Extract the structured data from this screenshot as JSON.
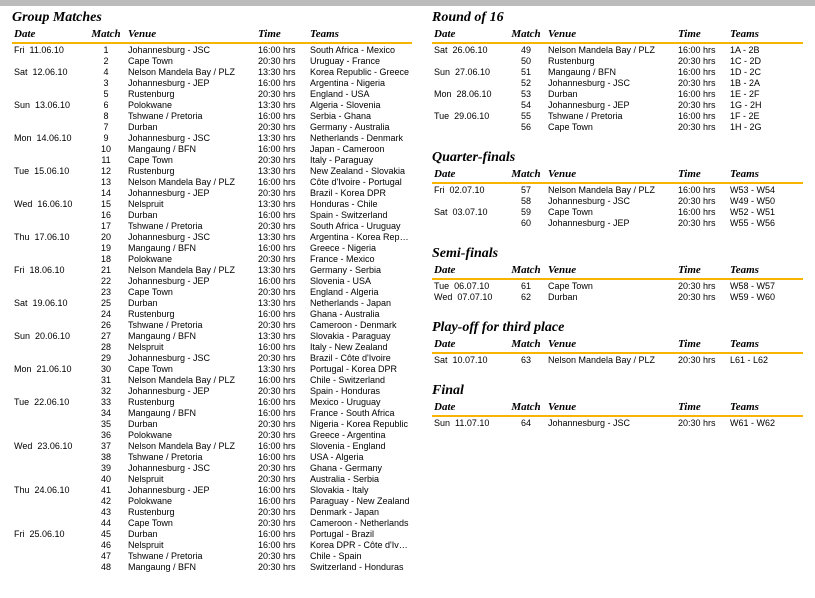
{
  "columns": {
    "date": "Date",
    "match": "Match",
    "venue": "Venue",
    "time": "Time",
    "teams": "Teams"
  },
  "sections": [
    {
      "key": "group",
      "title": "Group Matches",
      "col": "left",
      "rows": [
        {
          "d": "Fri",
          "dt": "11.06.10",
          "m": 1,
          "v": "Johannesburg - JSC",
          "t": "16:00 hrs",
          "tm": "South Africa - Mexico"
        },
        {
          "d": "",
          "dt": "",
          "m": 2,
          "v": "Cape Town",
          "t": "20:30 hrs",
          "tm": "Uruguay - France"
        },
        {
          "d": "Sat",
          "dt": "12.06.10",
          "m": 4,
          "v": "Nelson Mandela Bay / PLZ",
          "t": "13:30 hrs",
          "tm": "Korea Republic - Greece"
        },
        {
          "d": "",
          "dt": "",
          "m": 3,
          "v": "Johannesburg - JEP",
          "t": "16:00 hrs",
          "tm": "Argentina - Nigeria"
        },
        {
          "d": "",
          "dt": "",
          "m": 5,
          "v": "Rustenburg",
          "t": "20:30 hrs",
          "tm": "England - USA"
        },
        {
          "d": "Sun",
          "dt": "13.06.10",
          "m": 6,
          "v": "Polokwane",
          "t": "13:30 hrs",
          "tm": "Algeria - Slovenia"
        },
        {
          "d": "",
          "dt": "",
          "m": 8,
          "v": "Tshwane / Pretoria",
          "t": "16:00 hrs",
          "tm": "Serbia - Ghana"
        },
        {
          "d": "",
          "dt": "",
          "m": 7,
          "v": "Durban",
          "t": "20:30 hrs",
          "tm": "Germany - Australia"
        },
        {
          "d": "Mon",
          "dt": "14.06.10",
          "m": 9,
          "v": "Johannesburg - JSC",
          "t": "13:30 hrs",
          "tm": "Netherlands - Denmark"
        },
        {
          "d": "",
          "dt": "",
          "m": 10,
          "v": "Mangaung / BFN",
          "t": "16:00 hrs",
          "tm": "Japan - Cameroon"
        },
        {
          "d": "",
          "dt": "",
          "m": 11,
          "v": "Cape Town",
          "t": "20:30 hrs",
          "tm": "Italy - Paraguay"
        },
        {
          "d": "Tue",
          "dt": "15.06.10",
          "m": 12,
          "v": "Rustenburg",
          "t": "13:30 hrs",
          "tm": "New Zealand - Slovakia"
        },
        {
          "d": "",
          "dt": "",
          "m": 13,
          "v": "Nelson Mandela Bay / PLZ",
          "t": "16:00 hrs",
          "tm": "Côte d'Ivoire - Portugal"
        },
        {
          "d": "",
          "dt": "",
          "m": 14,
          "v": "Johannesburg - JEP",
          "t": "20:30 hrs",
          "tm": "Brazil - Korea DPR"
        },
        {
          "d": "Wed",
          "dt": "16.06.10",
          "m": 15,
          "v": "Nelspruit",
          "t": "13:30 hrs",
          "tm": "Honduras - Chile"
        },
        {
          "d": "",
          "dt": "",
          "m": 16,
          "v": "Durban",
          "t": "16:00 hrs",
          "tm": "Spain - Switzerland"
        },
        {
          "d": "",
          "dt": "",
          "m": 17,
          "v": "Tshwane / Pretoria",
          "t": "20:30 hrs",
          "tm": "South Africa - Uruguay"
        },
        {
          "d": "Thu",
          "dt": "17.06.10",
          "m": 20,
          "v": "Johannesburg - JSC",
          "t": "13:30 hrs",
          "tm": "Argentina - Korea Republic"
        },
        {
          "d": "",
          "dt": "",
          "m": 19,
          "v": "Mangaung / BFN",
          "t": "16:00 hrs",
          "tm": "Greece - Nigeria"
        },
        {
          "d": "",
          "dt": "",
          "m": 18,
          "v": "Polokwane",
          "t": "20:30 hrs",
          "tm": "France - Mexico"
        },
        {
          "d": "Fri",
          "dt": "18.06.10",
          "m": 21,
          "v": "Nelson Mandela Bay / PLZ",
          "t": "13:30 hrs",
          "tm": "Germany - Serbia"
        },
        {
          "d": "",
          "dt": "",
          "m": 22,
          "v": "Johannesburg - JEP",
          "t": "16:00 hrs",
          "tm": "Slovenia - USA"
        },
        {
          "d": "",
          "dt": "",
          "m": 23,
          "v": "Cape Town",
          "t": "20:30 hrs",
          "tm": "England - Algeria"
        },
        {
          "d": "Sat",
          "dt": "19.06.10",
          "m": 25,
          "v": "Durban",
          "t": "13:30 hrs",
          "tm": "Netherlands - Japan"
        },
        {
          "d": "",
          "dt": "",
          "m": 24,
          "v": "Rustenburg",
          "t": "16:00 hrs",
          "tm": "Ghana - Australia"
        },
        {
          "d": "",
          "dt": "",
          "m": 26,
          "v": "Tshwane / Pretoria",
          "t": "20:30 hrs",
          "tm": "Cameroon - Denmark"
        },
        {
          "d": "Sun",
          "dt": "20.06.10",
          "m": 27,
          "v": "Mangaung / BFN",
          "t": "13:30 hrs",
          "tm": "Slovakia - Paraguay"
        },
        {
          "d": "",
          "dt": "",
          "m": 28,
          "v": "Nelspruit",
          "t": "16:00 hrs",
          "tm": "Italy - New Zealand"
        },
        {
          "d": "",
          "dt": "",
          "m": 29,
          "v": "Johannesburg - JSC",
          "t": "20:30 hrs",
          "tm": "Brazil - Côte d'Ivoire"
        },
        {
          "d": "Mon",
          "dt": "21.06.10",
          "m": 30,
          "v": "Cape Town",
          "t": "13:30 hrs",
          "tm": "Portugal - Korea DPR"
        },
        {
          "d": "",
          "dt": "",
          "m": 31,
          "v": "Nelson Mandela Bay / PLZ",
          "t": "16:00 hrs",
          "tm": "Chile - Switzerland"
        },
        {
          "d": "",
          "dt": "",
          "m": 32,
          "v": "Johannesburg - JEP",
          "t": "20:30 hrs",
          "tm": "Spain - Honduras"
        },
        {
          "d": "Tue",
          "dt": "22.06.10",
          "m": 33,
          "v": "Rustenburg",
          "t": "16:00 hrs",
          "tm": "Mexico - Uruguay"
        },
        {
          "d": "",
          "dt": "",
          "m": 34,
          "v": "Mangaung / BFN",
          "t": "16:00 hrs",
          "tm": "France - South Africa"
        },
        {
          "d": "",
          "dt": "",
          "m": 35,
          "v": "Durban",
          "t": "20:30 hrs",
          "tm": "Nigeria - Korea Republic"
        },
        {
          "d": "",
          "dt": "",
          "m": 36,
          "v": "Polokwane",
          "t": "20:30 hrs",
          "tm": "Greece - Argentina"
        },
        {
          "d": "Wed",
          "dt": "23.06.10",
          "m": 37,
          "v": "Nelson Mandela Bay / PLZ",
          "t": "16:00 hrs",
          "tm": "Slovenia - England"
        },
        {
          "d": "",
          "dt": "",
          "m": 38,
          "v": "Tshwane / Pretoria",
          "t": "16:00 hrs",
          "tm": "USA - Algeria"
        },
        {
          "d": "",
          "dt": "",
          "m": 39,
          "v": "Johannesburg - JSC",
          "t": "20:30 hrs",
          "tm": "Ghana - Germany"
        },
        {
          "d": "",
          "dt": "",
          "m": 40,
          "v": "Nelspruit",
          "t": "20:30 hrs",
          "tm": "Australia - Serbia"
        },
        {
          "d": "Thu",
          "dt": "24.06.10",
          "m": 41,
          "v": "Johannesburg - JEP",
          "t": "16:00 hrs",
          "tm": "Slovakia - Italy"
        },
        {
          "d": "",
          "dt": "",
          "m": 42,
          "v": "Polokwane",
          "t": "16:00 hrs",
          "tm": "Paraguay - New Zealand"
        },
        {
          "d": "",
          "dt": "",
          "m": 43,
          "v": "Rustenburg",
          "t": "20:30 hrs",
          "tm": "Denmark - Japan"
        },
        {
          "d": "",
          "dt": "",
          "m": 44,
          "v": "Cape Town",
          "t": "20:30 hrs",
          "tm": "Cameroon - Netherlands"
        },
        {
          "d": "Fri",
          "dt": "25.06.10",
          "m": 45,
          "v": "Durban",
          "t": "16:00 hrs",
          "tm": "Portugal - Brazil"
        },
        {
          "d": "",
          "dt": "",
          "m": 46,
          "v": "Nelspruit",
          "t": "16:00 hrs",
          "tm": "Korea DPR - Côte d'Ivoire"
        },
        {
          "d": "",
          "dt": "",
          "m": 47,
          "v": "Tshwane / Pretoria",
          "t": "20:30 hrs",
          "tm": "Chile - Spain"
        },
        {
          "d": "",
          "dt": "",
          "m": 48,
          "v": "Mangaung / BFN",
          "t": "20:30 hrs",
          "tm": "Switzerland - Honduras"
        }
      ]
    },
    {
      "key": "r16",
      "title": "Round of 16",
      "col": "right",
      "rows": [
        {
          "d": "Sat",
          "dt": "26.06.10",
          "m": 49,
          "v": "Nelson Mandela Bay / PLZ",
          "t": "16:00 hrs",
          "tm": "1A - 2B"
        },
        {
          "d": "",
          "dt": "",
          "m": 50,
          "v": "Rustenburg",
          "t": "20:30 hrs",
          "tm": "1C - 2D"
        },
        {
          "d": "Sun",
          "dt": "27.06.10",
          "m": 51,
          "v": "Mangaung / BFN",
          "t": "16:00 hrs",
          "tm": "1D - 2C"
        },
        {
          "d": "",
          "dt": "",
          "m": 52,
          "v": "Johannesburg - JSC",
          "t": "20:30 hrs",
          "tm": "1B - 2A"
        },
        {
          "d": "Mon",
          "dt": "28.06.10",
          "m": 53,
          "v": "Durban",
          "t": "16:00 hrs",
          "tm": "1E - 2F"
        },
        {
          "d": "",
          "dt": "",
          "m": 54,
          "v": "Johannesburg - JEP",
          "t": "20:30 hrs",
          "tm": "1G - 2H"
        },
        {
          "d": "Tue",
          "dt": "29.06.10",
          "m": 55,
          "v": "Tshwane / Pretoria",
          "t": "16:00 hrs",
          "tm": "1F - 2E"
        },
        {
          "d": "",
          "dt": "",
          "m": 56,
          "v": "Cape Town",
          "t": "20:30 hrs",
          "tm": "1H - 2G"
        }
      ]
    },
    {
      "key": "qf",
      "title": "Quarter-finals",
      "col": "right",
      "rows": [
        {
          "d": "Fri",
          "dt": "02.07.10",
          "m": 57,
          "v": "Nelson Mandela Bay / PLZ",
          "t": "16:00 hrs",
          "tm": "W53 - W54"
        },
        {
          "d": "",
          "dt": "",
          "m": 58,
          "v": "Johannesburg - JSC",
          "t": "20:30 hrs",
          "tm": "W49 - W50"
        },
        {
          "d": "Sat",
          "dt": "03.07.10",
          "m": 59,
          "v": "Cape Town",
          "t": "16:00 hrs",
          "tm": "W52 - W51"
        },
        {
          "d": "",
          "dt": "",
          "m": 60,
          "v": "Johannesburg - JEP",
          "t": "20:30 hrs",
          "tm": "W55 - W56"
        }
      ]
    },
    {
      "key": "sf",
      "title": "Semi-finals",
      "col": "right",
      "rows": [
        {
          "d": "Tue",
          "dt": "06.07.10",
          "m": 61,
          "v": "Cape Town",
          "t": "20:30 hrs",
          "tm": "W58 - W57"
        },
        {
          "d": "Wed",
          "dt": "07.07.10",
          "m": 62,
          "v": "Durban",
          "t": "20:30 hrs",
          "tm": "W59 - W60"
        }
      ]
    },
    {
      "key": "third",
      "title": "Play-off for third place",
      "col": "right",
      "rows": [
        {
          "d": "Sat",
          "dt": "10.07.10",
          "m": 63,
          "v": "Nelson Mandela Bay / PLZ",
          "t": "20:30 hrs",
          "tm": "L61 - L62"
        }
      ]
    },
    {
      "key": "final",
      "title": "Final",
      "col": "right",
      "rows": [
        {
          "d": "Sun",
          "dt": "11.07.10",
          "m": 64,
          "v": "Johannesburg - JSC",
          "t": "20:30 hrs",
          "tm": "W61 - W62"
        }
      ]
    }
  ]
}
